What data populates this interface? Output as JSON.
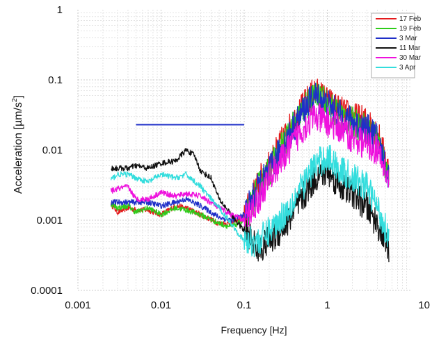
{
  "chart_data": {
    "type": "line",
    "title": "",
    "xlabel": "Frequency [Hz]",
    "ylabel_main": "Acceleration [",
    "ylabel_unit": "µm/s",
    "ylabel_sup": "2",
    "ylabel_close": "]",
    "x_scale": "log",
    "y_scale": "log",
    "xlim": [
      0.001,
      10
    ],
    "ylim": [
      0.0001,
      1
    ],
    "x_ticks": [
      0.001,
      0.01,
      0.1,
      1,
      10
    ],
    "x_tick_labels": [
      "0.001",
      "0.01",
      "0.1",
      "1",
      "10"
    ],
    "y_ticks": [
      0.0001,
      0.001,
      0.01,
      0.1,
      1
    ],
    "y_tick_labels": [
      "0.0001",
      "0.001",
      "0.01",
      "0.1",
      "1"
    ],
    "grid": true,
    "legend_position": "top-right",
    "reference_line": {
      "color": "#1f2fc8",
      "x": [
        0.005,
        0.1
      ],
      "y": 0.023
    },
    "series": [
      {
        "name": "17 Feb",
        "color": "#e41a1c",
        "x": [
          0.0025,
          0.003,
          0.004,
          0.005,
          0.007,
          0.01,
          0.015,
          0.02,
          0.03,
          0.05,
          0.07,
          0.1,
          0.15,
          0.2,
          0.3,
          0.5,
          0.7,
          1,
          1.5,
          2,
          3,
          4,
          5.5
        ],
        "y": [
          0.0017,
          0.0013,
          0.0015,
          0.0014,
          0.0014,
          0.0012,
          0.0016,
          0.0015,
          0.0012,
          0.0009,
          0.0009,
          0.0011,
          0.0035,
          0.006,
          0.015,
          0.04,
          0.07,
          0.05,
          0.035,
          0.03,
          0.025,
          0.018,
          0.005
        ]
      },
      {
        "name": "19 Feb",
        "color": "#2ecc1a",
        "x": [
          0.0025,
          0.003,
          0.004,
          0.005,
          0.007,
          0.01,
          0.015,
          0.02,
          0.03,
          0.05,
          0.07,
          0.1,
          0.15,
          0.2,
          0.3,
          0.5,
          0.7,
          1,
          1.5,
          2,
          3,
          4,
          5.5
        ],
        "y": [
          0.0017,
          0.0015,
          0.0016,
          0.0013,
          0.0015,
          0.0012,
          0.0015,
          0.0014,
          0.0012,
          0.0009,
          0.0008,
          0.001,
          0.003,
          0.005,
          0.013,
          0.035,
          0.06,
          0.045,
          0.03,
          0.025,
          0.02,
          0.015,
          0.004
        ]
      },
      {
        "name": "3 Mar",
        "color": "#1f2fc8",
        "x": [
          0.0025,
          0.003,
          0.004,
          0.005,
          0.007,
          0.01,
          0.015,
          0.02,
          0.03,
          0.05,
          0.07,
          0.1,
          0.15,
          0.2,
          0.3,
          0.5,
          0.7,
          1,
          1.5,
          2,
          3,
          4,
          5.5
        ],
        "y": [
          0.0018,
          0.0018,
          0.0018,
          0.0018,
          0.0018,
          0.0016,
          0.0018,
          0.002,
          0.0016,
          0.0011,
          0.001,
          0.0012,
          0.003,
          0.005,
          0.012,
          0.035,
          0.06,
          0.045,
          0.03,
          0.025,
          0.02,
          0.015,
          0.004
        ]
      },
      {
        "name": "11 Mar",
        "color": "#111111",
        "x": [
          0.0025,
          0.003,
          0.004,
          0.005,
          0.007,
          0.01,
          0.015,
          0.02,
          0.025,
          0.03,
          0.04,
          0.05,
          0.07,
          0.1,
          0.15,
          0.2,
          0.3,
          0.5,
          0.7,
          1,
          1.5,
          2,
          3,
          4,
          5.5
        ],
        "y": [
          0.0055,
          0.0055,
          0.0055,
          0.006,
          0.0055,
          0.0065,
          0.007,
          0.01,
          0.0085,
          0.005,
          0.004,
          0.002,
          0.0012,
          0.0007,
          0.0004,
          0.0005,
          0.0008,
          0.002,
          0.004,
          0.005,
          0.003,
          0.0025,
          0.0015,
          0.0009,
          0.0004
        ]
      },
      {
        "name": "30 Mar",
        "color": "#ee11dd",
        "x": [
          0.0025,
          0.003,
          0.004,
          0.005,
          0.007,
          0.01,
          0.015,
          0.02,
          0.03,
          0.05,
          0.07,
          0.1,
          0.15,
          0.2,
          0.3,
          0.5,
          0.7,
          1,
          1.5,
          2,
          3,
          4,
          5.5
        ],
        "y": [
          0.0026,
          0.0028,
          0.003,
          0.002,
          0.002,
          0.0025,
          0.0022,
          0.0024,
          0.0022,
          0.0015,
          0.0012,
          0.001,
          0.002,
          0.004,
          0.008,
          0.02,
          0.03,
          0.025,
          0.02,
          0.015,
          0.012,
          0.01,
          0.0035
        ]
      },
      {
        "name": "3 Apr",
        "color": "#33dddd",
        "x": [
          0.0025,
          0.003,
          0.004,
          0.005,
          0.007,
          0.01,
          0.015,
          0.02,
          0.03,
          0.04,
          0.05,
          0.07,
          0.1,
          0.15,
          0.2,
          0.3,
          0.5,
          0.7,
          1,
          1.5,
          2,
          3,
          4,
          5.5
        ],
        "y": [
          0.0038,
          0.0045,
          0.0045,
          0.004,
          0.0035,
          0.0045,
          0.004,
          0.0045,
          0.003,
          0.002,
          0.0015,
          0.0009,
          0.0005,
          0.0005,
          0.0007,
          0.0012,
          0.003,
          0.006,
          0.008,
          0.005,
          0.004,
          0.003,
          0.0015,
          0.0006
        ]
      }
    ]
  }
}
